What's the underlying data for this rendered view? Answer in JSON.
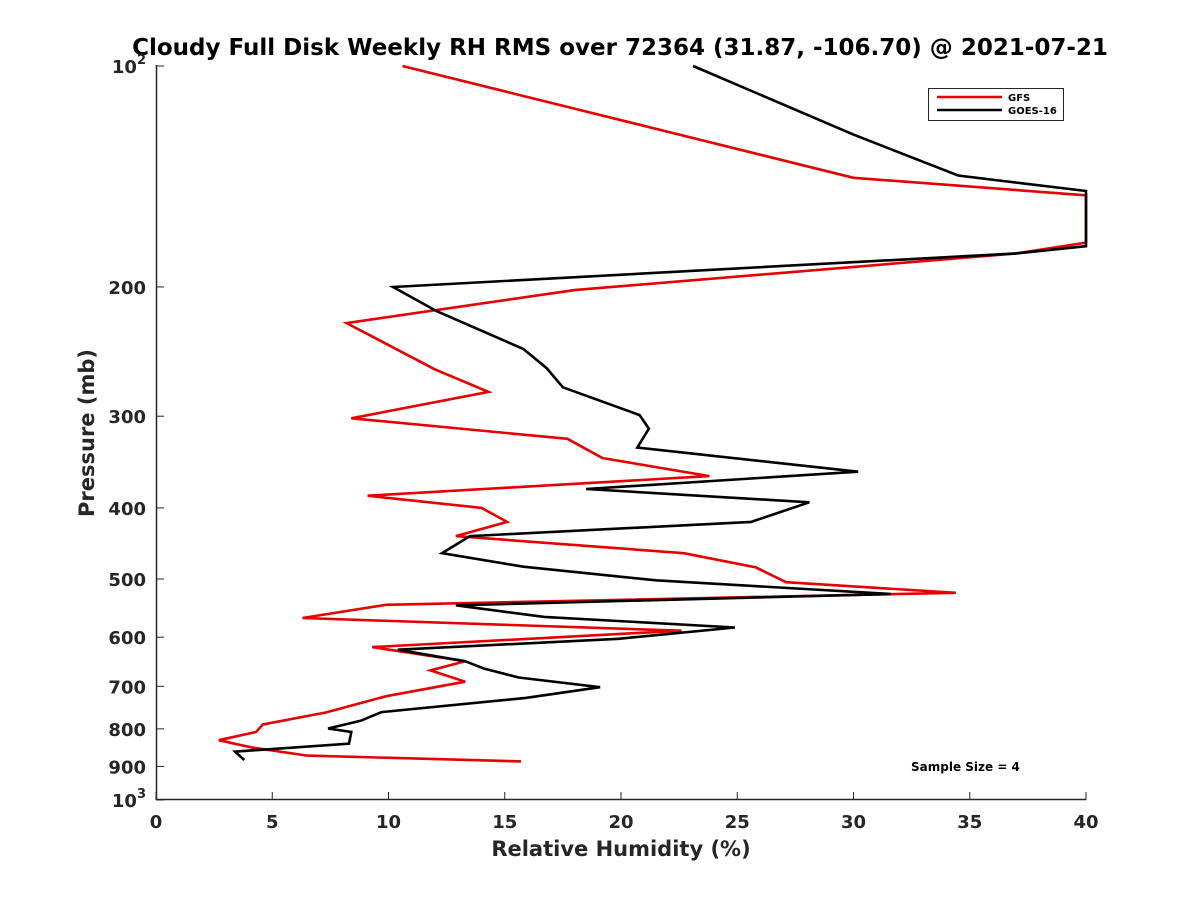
{
  "chart_data": {
    "type": "line",
    "title": "Cloudy Full Disk Weekly RH RMS over 72364 (31.87, -106.70) @ 2021-07-21",
    "xlabel": "Relative Humidity (%)",
    "ylabel": "Pressure (mb)",
    "xlim": [
      0,
      40
    ],
    "ylim": [
      100,
      1000
    ],
    "yscale": "log",
    "y_reversed": true,
    "grid": false,
    "legend_position": "top-right",
    "x_ticks": [
      {
        "value": 0,
        "label": "0"
      },
      {
        "value": 5,
        "label": "5"
      },
      {
        "value": 10,
        "label": "10"
      },
      {
        "value": 15,
        "label": "15"
      },
      {
        "value": 20,
        "label": "20"
      },
      {
        "value": 25,
        "label": "25"
      },
      {
        "value": 30,
        "label": "30"
      },
      {
        "value": 35,
        "label": "35"
      },
      {
        "value": 40,
        "label": "40"
      }
    ],
    "y_ticks": [
      {
        "value": 100,
        "base": "10",
        "exp": "2"
      },
      {
        "value": 200,
        "base": "200",
        "exp": ""
      },
      {
        "value": 300,
        "base": "300",
        "exp": ""
      },
      {
        "value": 400,
        "base": "400",
        "exp": ""
      },
      {
        "value": 500,
        "base": "500",
        "exp": ""
      },
      {
        "value": 600,
        "base": "600",
        "exp": ""
      },
      {
        "value": 700,
        "base": "700",
        "exp": ""
      },
      {
        "value": 800,
        "base": "800",
        "exp": ""
      },
      {
        "value": 900,
        "base": "900",
        "exp": ""
      },
      {
        "value": 1000,
        "base": "10",
        "exp": "3"
      }
    ],
    "series": [
      {
        "name": "GFS",
        "color": "#e60000",
        "x": [
          10.6,
          30.0,
          40.0,
          40.0,
          37.0,
          18.0,
          8.2,
          12.0,
          14.3,
          8.4,
          17.7,
          19.2,
          23.8,
          9.1,
          14.0,
          15.1,
          12.9,
          22.7,
          25.8,
          27.1,
          34.4,
          9.9,
          6.3,
          22.6,
          9.3,
          13.3,
          11.8,
          13.3,
          9.9,
          7.3,
          4.6,
          4.3,
          2.7,
          4.1,
          6.5,
          15.7
        ],
        "y": [
          100,
          142,
          150,
          174,
          180,
          202,
          224,
          259,
          278,
          302,
          322,
          342,
          362,
          385,
          400,
          418,
          437,
          461,
          482,
          505,
          522,
          542,
          565,
          588,
          619,
          647,
          666,
          690,
          722,
          760,
          789,
          808,
          829,
          848,
          870,
          886
        ]
      },
      {
        "name": "GOES-16",
        "color": "#000000",
        "x": [
          23.1,
          30.0,
          34.5,
          40.0,
          40.0,
          37.0,
          10.2,
          12.1,
          15.8,
          16.8,
          17.5,
          20.8,
          21.2,
          20.7,
          30.2,
          18.5,
          28.1,
          25.6,
          13.5,
          12.3,
          15.8,
          21.5,
          31.6,
          12.9,
          16.7,
          24.9,
          19.9,
          10.4,
          13.3,
          14.1,
          15.6,
          19.1,
          15.9,
          9.7,
          8.8,
          7.4,
          8.4,
          8.3,
          3.4,
          3.8
        ],
        "y": [
          100,
          124,
          141,
          148,
          176,
          180,
          200,
          216,
          243,
          258,
          274,
          299,
          312,
          331,
          357,
          377,
          393,
          418,
          437,
          461,
          481,
          502,
          524,
          543,
          563,
          582,
          603,
          624,
          647,
          662,
          681,
          702,
          726,
          759,
          780,
          799,
          808,
          838,
          859,
          882
        ]
      }
    ],
    "annotations": [
      "Sample Size = 4"
    ]
  }
}
